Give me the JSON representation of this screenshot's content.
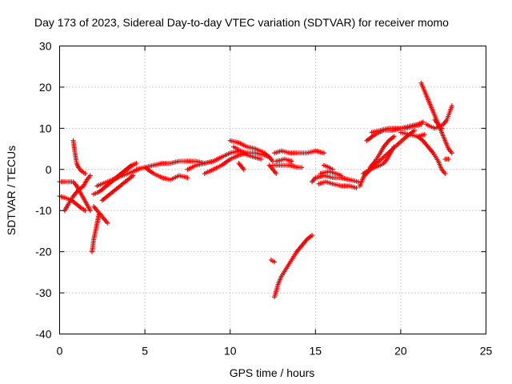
{
  "chart_data": {
    "type": "scatter",
    "title": "Day 173 of 2023, Sidereal Day-to-day VTEC variation (SDTVAR) for receiver momo",
    "xlabel": "GPS time / hours",
    "ylabel": "SDTVAR / TECUs",
    "xlim": [
      0,
      25
    ],
    "ylim": [
      -40,
      30
    ],
    "xticks": [
      0,
      5,
      10,
      15,
      20,
      25
    ],
    "yticks": [
      -40,
      -30,
      -20,
      -10,
      0,
      10,
      20,
      30
    ],
    "grid": true,
    "marker": "+",
    "series": [
      {
        "name": "SDTVAR",
        "color": "#ff0000",
        "segments": [
          [
            [
              0.0,
              -6.5
            ],
            [
              0.4,
              -7
            ],
            [
              0.7,
              -7.5
            ],
            [
              1.0,
              -8.5
            ],
            [
              1.3,
              -9.5
            ],
            [
              1.5,
              -10
            ]
          ],
          [
            [
              0.0,
              -3
            ],
            [
              0.4,
              -3
            ],
            [
              0.8,
              -3
            ],
            [
              1.0,
              -4
            ],
            [
              1.2,
              -5.5
            ],
            [
              1.4,
              -7
            ],
            [
              1.6,
              -8.5
            ],
            [
              1.8,
              -10
            ]
          ],
          [
            [
              0.3,
              -10
            ],
            [
              0.5,
              -8.5
            ],
            [
              0.8,
              -6.5
            ],
            [
              1.1,
              -5
            ],
            [
              1.4,
              -4
            ],
            [
              1.6,
              -2.5
            ],
            [
              1.8,
              -1.5
            ]
          ],
          [
            [
              0.8,
              7
            ],
            [
              0.9,
              4
            ],
            [
              1.0,
              1.5
            ],
            [
              1.1,
              0.5
            ],
            [
              1.3,
              -0.5
            ],
            [
              1.5,
              -1
            ]
          ],
          [
            [
              1.9,
              -20
            ],
            [
              2.0,
              -17
            ],
            [
              2.1,
              -15
            ],
            [
              2.2,
              -13
            ],
            [
              2.3,
              -11
            ]
          ],
          [
            [
              2.0,
              -9
            ],
            [
              2.2,
              -10
            ],
            [
              2.4,
              -11
            ],
            [
              2.6,
              -12
            ],
            [
              2.8,
              -13
            ]
          ],
          [
            [
              2.0,
              -6
            ],
            [
              2.3,
              -5.5
            ],
            [
              2.6,
              -4.5
            ],
            [
              2.9,
              -3.5
            ],
            [
              3.2,
              -2.5
            ],
            [
              3.5,
              -1.5
            ],
            [
              3.8,
              -0.5
            ],
            [
              4.1,
              0.5
            ],
            [
              4.3,
              1
            ]
          ],
          [
            [
              2.2,
              -4
            ],
            [
              2.5,
              -3.5
            ],
            [
              2.8,
              -3
            ],
            [
              3.1,
              -2.5
            ],
            [
              3.4,
              -2
            ],
            [
              3.7,
              -1.5
            ],
            [
              4.0,
              -1
            ],
            [
              4.3,
              -0.5
            ],
            [
              4.6,
              0
            ]
          ],
          [
            [
              2.5,
              -7.5
            ],
            [
              2.8,
              -6.5
            ],
            [
              3.1,
              -5.5
            ],
            [
              3.4,
              -4.5
            ],
            [
              3.7,
              -3.5
            ],
            [
              4.0,
              -2.5
            ],
            [
              4.3,
              -1.5
            ]
          ],
          [
            [
              3.0,
              -3
            ],
            [
              3.3,
              -2
            ],
            [
              3.6,
              -1
            ],
            [
              3.9,
              0
            ],
            [
              4.2,
              1
            ],
            [
              4.5,
              1.5
            ]
          ],
          [
            [
              4.5,
              0
            ],
            [
              5.0,
              0.5
            ],
            [
              5.5,
              1
            ],
            [
              6.0,
              1.5
            ],
            [
              6.5,
              1.5
            ],
            [
              7.0,
              2
            ],
            [
              7.5,
              2
            ],
            [
              8.0,
              2
            ],
            [
              8.5,
              1.5
            ],
            [
              9.0,
              2
            ],
            [
              9.5,
              3
            ],
            [
              10.0,
              4
            ],
            [
              10.5,
              4.5
            ],
            [
              11.0,
              4
            ]
          ],
          [
            [
              5.0,
              0.5
            ],
            [
              5.5,
              -1
            ],
            [
              6.0,
              -2
            ],
            [
              6.5,
              -2.5
            ],
            [
              7.0,
              -1.5
            ],
            [
              7.5,
              -2
            ]
          ],
          [
            [
              7.5,
              0
            ],
            [
              8.0,
              1
            ],
            [
              8.5,
              1.5
            ],
            [
              9.0,
              2
            ],
            [
              9.5,
              3
            ]
          ],
          [
            [
              8.5,
              -1
            ],
            [
              9.0,
              0
            ],
            [
              9.5,
              1
            ],
            [
              10.0,
              2.5
            ],
            [
              10.5,
              3.5
            ],
            [
              11.0,
              4
            ],
            [
              11.5,
              4
            ],
            [
              12.0,
              3.5
            ],
            [
              12.3,
              3
            ]
          ],
          [
            [
              10.0,
              7
            ],
            [
              10.5,
              6.5
            ],
            [
              11.0,
              5.5
            ],
            [
              11.5,
              5
            ],
            [
              12.0,
              4
            ],
            [
              12.3,
              3
            ],
            [
              12.5,
              2
            ]
          ],
          [
            [
              10.2,
              5.5
            ],
            [
              10.6,
              4.5
            ],
            [
              11.0,
              3.5
            ],
            [
              11.4,
              3
            ],
            [
              11.8,
              2.5
            ]
          ],
          [
            [
              10.5,
              1.5
            ],
            [
              10.8,
              0
            ]
          ],
          [
            [
              12.3,
              1
            ],
            [
              12.5,
              0
            ],
            [
              12.7,
              -1
            ]
          ],
          [
            [
              12.6,
              4
            ],
            [
              13.0,
              4.5
            ],
            [
              13.5,
              4
            ],
            [
              14.0,
              4
            ],
            [
              14.5,
              4
            ],
            [
              15.0,
              4.5
            ],
            [
              15.5,
              4
            ]
          ],
          [
            [
              12.5,
              1
            ],
            [
              13.0,
              1
            ],
            [
              13.5,
              1
            ],
            [
              14.0,
              0.5
            ],
            [
              14.2,
              0.5
            ]
          ],
          [
            [
              12.7,
              2
            ],
            [
              13.2,
              2.5
            ],
            [
              13.6,
              2
            ]
          ],
          [
            [
              12.6,
              -22.5
            ],
            [
              12.4,
              -22
            ]
          ],
          [
            [
              12.6,
              -31
            ],
            [
              12.8,
              -28
            ],
            [
              13.0,
              -26
            ],
            [
              13.3,
              -24
            ],
            [
              13.6,
              -22
            ],
            [
              13.9,
              -20
            ],
            [
              14.2,
              -18.5
            ],
            [
              14.5,
              -17
            ],
            [
              14.8,
              -16
            ]
          ],
          [
            [
              14.8,
              -3
            ],
            [
              15.0,
              -2
            ],
            [
              15.5,
              -1.5
            ],
            [
              16.0,
              -2
            ],
            [
              16.5,
              -2
            ],
            [
              17.0,
              -2.5
            ],
            [
              17.5,
              -3
            ]
          ],
          [
            [
              15.2,
              -3.5
            ],
            [
              15.6,
              -3
            ],
            [
              16.0,
              -3.5
            ],
            [
              16.5,
              -4
            ],
            [
              17.0,
              -4
            ],
            [
              17.4,
              -4.5
            ]
          ],
          [
            [
              15.3,
              -1
            ],
            [
              15.8,
              -0.5
            ],
            [
              16.2,
              -1
            ],
            [
              16.5,
              -1.5
            ]
          ],
          [
            [
              15.5,
              1
            ],
            [
              15.8,
              0.5
            ],
            [
              16.0,
              0
            ]
          ],
          [
            [
              17.6,
              -4
            ],
            [
              17.8,
              -2
            ],
            [
              18.0,
              -0.5
            ],
            [
              18.2,
              0
            ],
            [
              18.5,
              0.5
            ],
            [
              18.8,
              1
            ],
            [
              19.0,
              1.5
            ],
            [
              19.2,
              2.5
            ],
            [
              19.4,
              4
            ],
            [
              19.6,
              5.5
            ]
          ],
          [
            [
              17.8,
              -1
            ],
            [
              18.2,
              0
            ],
            [
              18.6,
              1.5
            ],
            [
              19.0,
              3
            ],
            [
              19.4,
              4.5
            ],
            [
              19.8,
              6
            ],
            [
              20.2,
              7.5
            ],
            [
              20.5,
              8.5
            ],
            [
              20.8,
              9.5
            ]
          ],
          [
            [
              18.2,
              0.5
            ],
            [
              18.5,
              2
            ],
            [
              18.8,
              4
            ],
            [
              19.0,
              5.5
            ],
            [
              19.3,
              7
            ],
            [
              19.6,
              8
            ]
          ],
          [
            [
              18.0,
              -1
            ],
            [
              18.3,
              0.5
            ]
          ],
          [
            [
              18.0,
              7
            ],
            [
              18.5,
              8.5
            ],
            [
              19.0,
              9.5
            ],
            [
              19.5,
              9.5
            ],
            [
              20.0,
              10
            ],
            [
              20.5,
              10.5
            ],
            [
              21.0,
              11
            ],
            [
              21.3,
              11.5
            ]
          ],
          [
            [
              18.3,
              9
            ],
            [
              18.8,
              9.5
            ],
            [
              19.3,
              10
            ],
            [
              19.8,
              10
            ],
            [
              20.3,
              10
            ],
            [
              20.8,
              10.5
            ],
            [
              21.2,
              11
            ]
          ],
          [
            [
              20.0,
              9
            ],
            [
              20.5,
              8.5
            ],
            [
              21.0,
              8
            ],
            [
              21.4,
              8.5
            ]
          ],
          [
            [
              21.2,
              21
            ],
            [
              21.4,
              19
            ],
            [
              21.6,
              17
            ],
            [
              21.8,
              15
            ],
            [
              22.0,
              13
            ],
            [
              22.2,
              11
            ],
            [
              22.4,
              9
            ],
            [
              22.6,
              7
            ],
            [
              22.8,
              5
            ],
            [
              23.0,
              4
            ]
          ],
          [
            [
              21.0,
              8
            ],
            [
              21.3,
              7
            ],
            [
              21.6,
              5.5
            ],
            [
              21.9,
              4
            ],
            [
              22.2,
              2
            ],
            [
              22.4,
              0
            ],
            [
              22.6,
              -1
            ]
          ],
          [
            [
              21.5,
              11
            ],
            [
              21.7,
              10.5
            ],
            [
              22.0,
              10
            ],
            [
              22.3,
              10.5
            ],
            [
              22.5,
              11
            ],
            [
              22.7,
              12
            ],
            [
              23.0,
              15.5
            ]
          ],
          [
            [
              22.0,
              12
            ],
            [
              22.2,
              11
            ],
            [
              22.4,
              10
            ]
          ],
          [
            [
              22.6,
              2.5
            ],
            [
              22.8,
              2.5
            ]
          ]
        ]
      }
    ]
  }
}
